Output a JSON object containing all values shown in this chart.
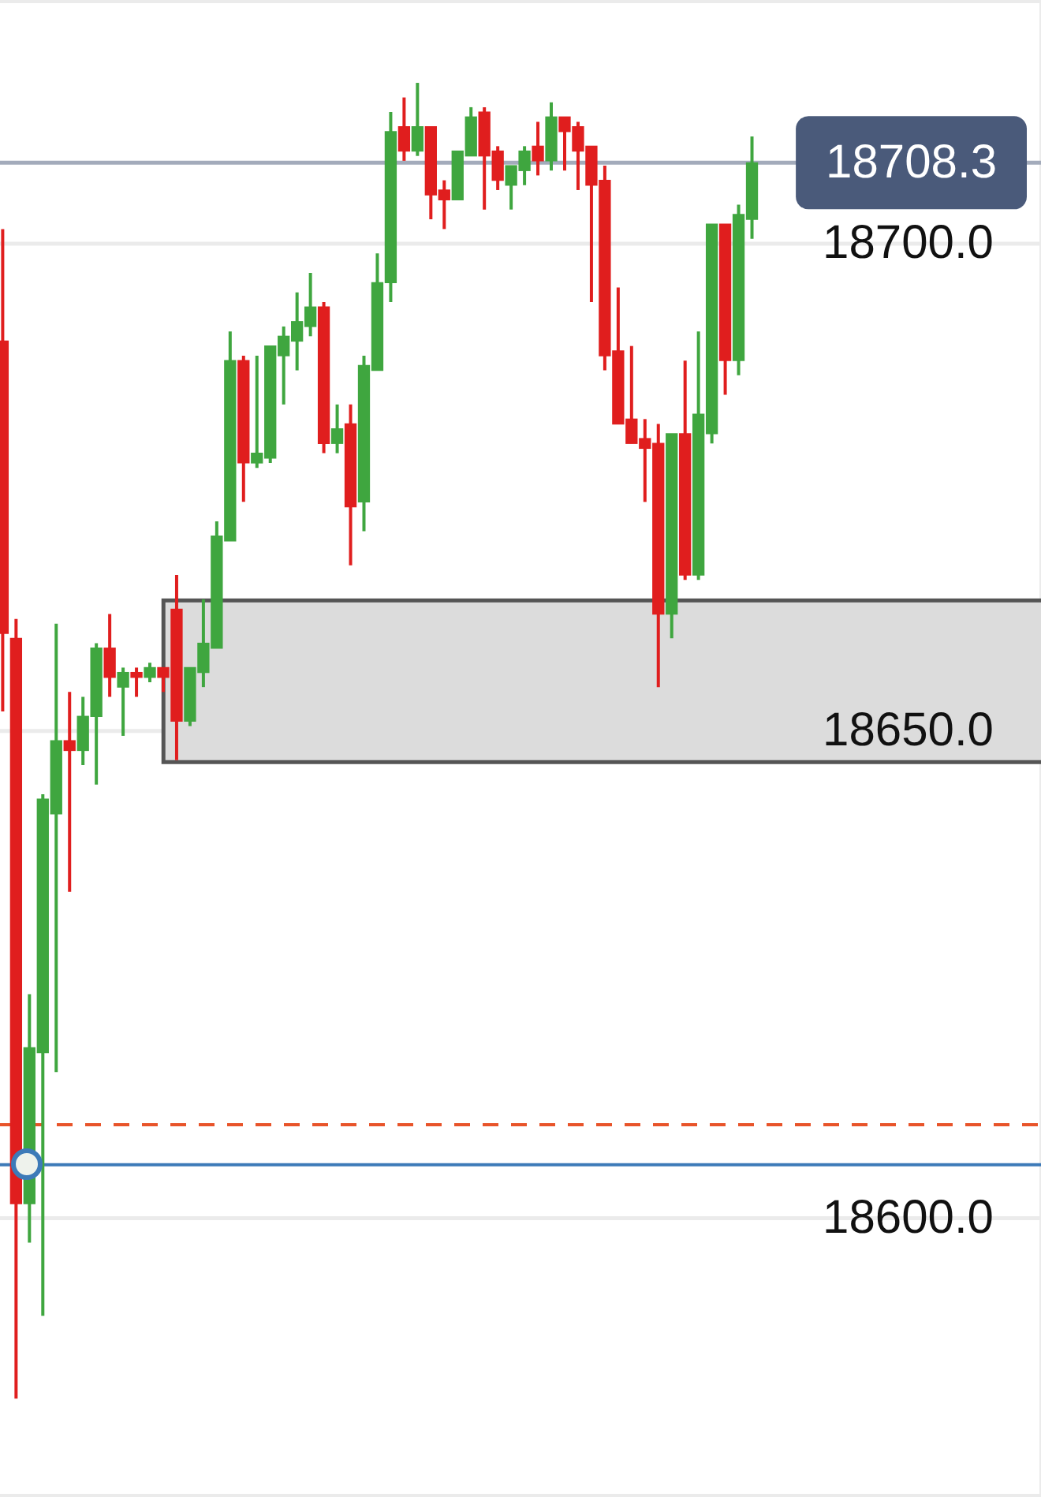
{
  "chart_data": {
    "type": "candlestick",
    "categories": [
      null,
      null,
      null,
      null,
      null,
      null,
      null,
      null,
      null,
      null,
      null,
      null,
      null,
      null,
      null,
      null,
      null,
      null,
      null,
      null,
      null,
      null,
      null,
      null,
      null,
      null,
      null,
      null,
      null,
      null,
      null,
      null,
      null,
      null,
      null,
      null,
      null,
      null,
      null,
      null,
      null,
      null,
      null,
      null,
      null,
      null,
      null,
      null,
      null,
      null,
      null,
      null,
      null,
      null,
      null,
      null,
      null
    ],
    "ohlc": [
      [
        18690,
        18701.5,
        18652,
        18660
      ],
      [
        18659.5,
        18661.5,
        18581.5,
        18601.5
      ],
      [
        18601.5,
        18623,
        18597.5,
        18617.5
      ],
      [
        18617,
        18643.5,
        18590,
        18643
      ],
      [
        18641.5,
        18661,
        18615,
        18649
      ],
      [
        18649,
        18654,
        18633.5,
        18648
      ],
      [
        18648,
        18653.5,
        18646.5,
        18651.5
      ],
      [
        18651.5,
        18659,
        18644.5,
        18658.5
      ],
      [
        18658.5,
        18662,
        18653.5,
        18655.5
      ],
      [
        18654.5,
        18656.5,
        18649.5,
        18656
      ],
      [
        18656,
        18656.5,
        18653.5,
        18655.5
      ],
      [
        18655.5,
        18657,
        18655,
        18656.5
      ],
      [
        18656.5,
        18656.5,
        18654,
        18655.5
      ],
      [
        18662.5,
        18666,
        18647,
        18651
      ],
      [
        18651,
        18656.5,
        18650.5,
        18656.5
      ],
      [
        18656,
        18663.5,
        18654.5,
        18659
      ],
      [
        18658.5,
        18671.5,
        18658.5,
        18670
      ],
      [
        18669.5,
        18691,
        18669.5,
        18688
      ],
      [
        18688,
        18688.5,
        18673.5,
        18677.5
      ],
      [
        18677.5,
        18688.5,
        18677,
        18678.5
      ],
      [
        18678,
        18689.5,
        18677.5,
        18689.5
      ],
      [
        18688.5,
        18691.5,
        18683.5,
        18690.5
      ],
      [
        18690,
        18695,
        18687,
        18692
      ],
      [
        18691.5,
        18697,
        18690.5,
        18693.5
      ],
      [
        18693.5,
        18694,
        18678.5,
        18679.5
      ],
      [
        18679.5,
        18683.5,
        18678.5,
        18681
      ],
      [
        18681.5,
        18683.5,
        18667,
        18673
      ],
      [
        18673.5,
        18688.5,
        18670.5,
        18687.5
      ],
      [
        18687,
        18699,
        18687,
        18696
      ],
      [
        18696,
        18713.5,
        18694,
        18711.5
      ],
      [
        18712,
        18715,
        18708.5,
        18709.5
      ],
      [
        18709.5,
        18716.5,
        18709,
        18712
      ],
      [
        18712,
        18712,
        18702.5,
        18705
      ],
      [
        18705.5,
        18706.5,
        18701.5,
        18704.5
      ],
      [
        18704.5,
        18709.5,
        18704.5,
        18709.5
      ],
      [
        18709,
        18714,
        18709,
        18713
      ],
      [
        18713.5,
        18714,
        18703.5,
        18709
      ],
      [
        18709.5,
        18710,
        18705.5,
        18706.5
      ],
      [
        18706,
        18708,
        18703.5,
        18708
      ],
      [
        18707.5,
        18710,
        18706,
        18709.5
      ],
      [
        18710,
        18712.5,
        18707,
        18708.5
      ],
      [
        18708.5,
        18714.5,
        18707.5,
        18713
      ],
      [
        18713,
        18713,
        18707.5,
        18711.5
      ],
      [
        18712,
        18712.5,
        18705.5,
        18709.5
      ],
      [
        18710,
        18710,
        18694,
        18706
      ],
      [
        18706.5,
        18708,
        18687,
        18688.5
      ],
      [
        18689,
        18695.5,
        18681.5,
        18681.5
      ],
      [
        18682,
        18689.5,
        18679.5,
        18679.5
      ],
      [
        18680,
        18682,
        18673.5,
        18679
      ],
      [
        18679.5,
        18681.5,
        18654.5,
        18662
      ],
      [
        18662,
        18680.5,
        18659.5,
        18680.5
      ],
      [
        18680.5,
        18688,
        18665.5,
        18666
      ],
      [
        18666,
        18691,
        18665.5,
        18682.5
      ],
      [
        18680.5,
        18702,
        18679.5,
        18702
      ],
      [
        18702,
        18702,
        18684.5,
        18688
      ],
      [
        18688,
        18704,
        18686.5,
        18703
      ],
      [
        18702.5,
        18711,
        18700.5,
        18708.3
      ]
    ],
    "colors": [
      "#e01e1e",
      "#e01e1e",
      "#3fa63f",
      "#3fa63f",
      "#3fa63f",
      "#e01e1e",
      "#3fa63f",
      "#3fa63f",
      "#e01e1e",
      "#3fa63f",
      "#e01e1e",
      "#3fa63f",
      "#e01e1e",
      "#e01e1e",
      "#3fa63f",
      "#3fa63f",
      "#3fa63f",
      "#3fa63f",
      "#e01e1e",
      "#3fa63f",
      "#3fa63f",
      "#3fa63f",
      "#3fa63f",
      "#3fa63f",
      "#e01e1e",
      "#3fa63f",
      "#e01e1e",
      "#3fa63f",
      "#3fa63f",
      "#3fa63f",
      "#e01e1e",
      "#3fa63f",
      "#e01e1e",
      "#e01e1e",
      "#3fa63f",
      "#3fa63f",
      "#e01e1e",
      "#e01e1e",
      "#3fa63f",
      "#3fa63f",
      "#e01e1e",
      "#3fa63f",
      "#e01e1e",
      "#e01e1e",
      "#e01e1e",
      "#e01e1e",
      "#e01e1e",
      "#e01e1e",
      "#e01e1e",
      "#e01e1e",
      "#3fa63f",
      "#e01e1e",
      "#3fa63f",
      "#3fa63f",
      "#e01e1e",
      "#3fa63f",
      "#3fa63f"
    ],
    "ylim": [
      18571.4,
      18725
    ],
    "yticks": [
      {
        "value": 18600,
        "label": "18600.0"
      },
      {
        "value": 18650,
        "label": "18650.0"
      },
      {
        "value": 18700,
        "label": "18700.0"
      }
    ],
    "grid": "y",
    "tick_labels": "y",
    "ref_lines": [
      {
        "axis": "y",
        "value": 18708.3,
        "label": "18708.3",
        "color": "#a3abbb"
      },
      {
        "axis": "y",
        "value": 18609.6,
        "color": "#e8542a",
        "line_style": "dashed"
      },
      {
        "axis": "y",
        "value": 18605.5,
        "color": "#3d7ab8"
      }
    ],
    "bands": [
      {
        "axis": "y",
        "from": 18646.8,
        "to": 18663.4,
        "color": "#dcdcdc"
      }
    ]
  }
}
